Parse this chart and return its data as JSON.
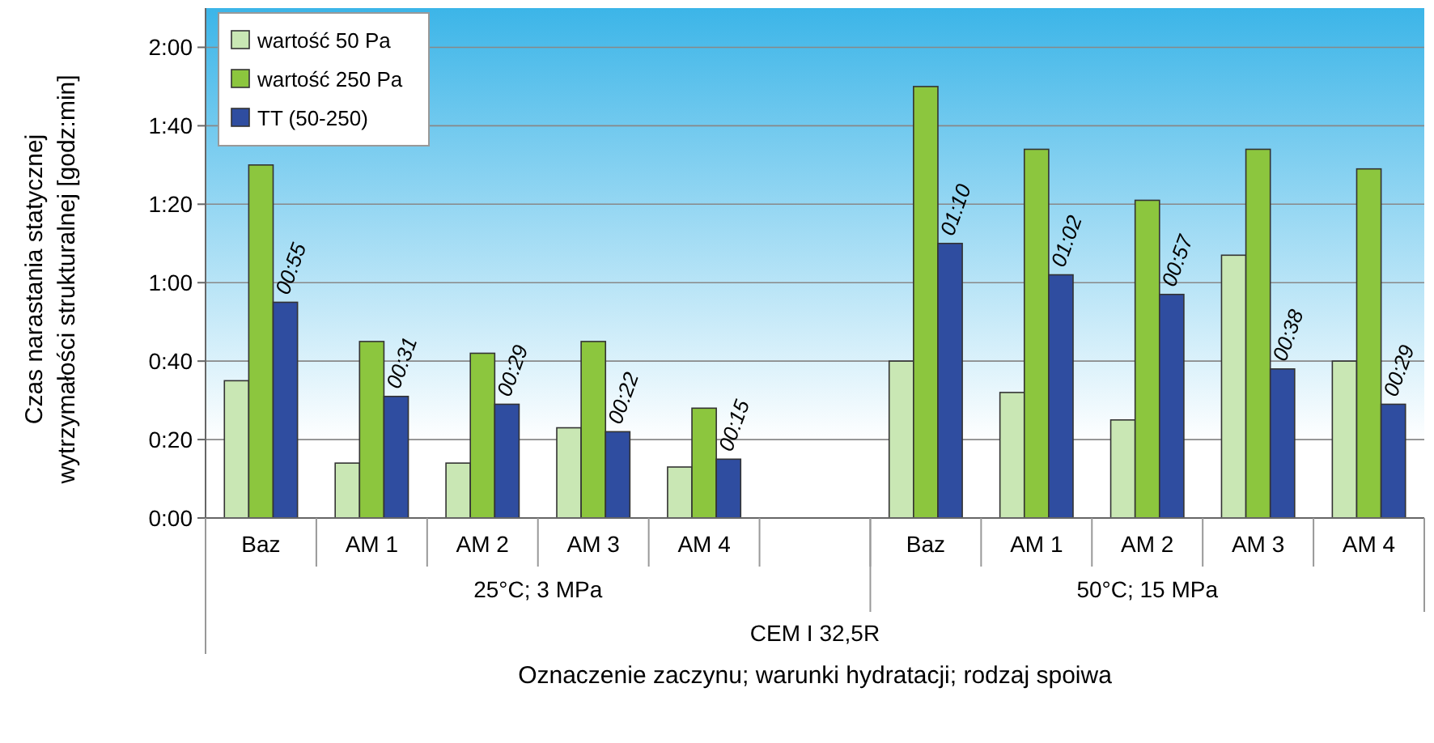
{
  "chart_data": {
    "type": "bar",
    "xlabel": "Oznaczenie zaczynu; warunki hydratacji; rodzaj spoiwa",
    "ylabel": "Czas narastania statycznej wytrzymałości strukturalnej [godz:min]",
    "categories": [
      "Baz",
      "AM 1",
      "AM 2",
      "AM 3",
      "AM 4",
      null,
      "Baz",
      "AM 1",
      "AM 2",
      "AM 3",
      "AM 4"
    ],
    "series": [
      {
        "name": "wartość 50 Pa",
        "color": "#c9e7b4",
        "values": [
          35,
          14,
          14,
          23,
          13,
          null,
          40,
          32,
          25,
          67,
          40
        ]
      },
      {
        "name": "wartość 250 Pa",
        "color": "#8cc63e",
        "values": [
          90,
          45,
          42,
          45,
          28,
          null,
          110,
          94,
          81,
          94,
          89
        ]
      },
      {
        "name": "TT (50-250)",
        "color": "#2f4da0",
        "values": [
          55,
          31,
          29,
          22,
          15,
          null,
          70,
          62,
          57,
          38,
          29
        ],
        "value_labels": [
          "00:55",
          "00:31",
          "00:29",
          "00:22",
          "00:15",
          null,
          "01:10",
          "01:02",
          "00:57",
          "00:38",
          "00:29"
        ]
      }
    ],
    "ylim": [
      0,
      130
    ],
    "yticks": [
      {
        "value": 0,
        "label": "0:00"
      },
      {
        "value": 20,
        "label": "0:20"
      },
      {
        "value": 40,
        "label": "0:40"
      },
      {
        "value": 60,
        "label": "1:00"
      },
      {
        "value": 80,
        "label": "1:20"
      },
      {
        "value": 100,
        "label": "1:40"
      },
      {
        "value": 120,
        "label": "2:00"
      }
    ],
    "grid": "y",
    "legend": "top left",
    "annotations": [
      "25°C; 3 MPa",
      "50°C; 15 MPa",
      "CEM I 32,5R"
    ]
  }
}
